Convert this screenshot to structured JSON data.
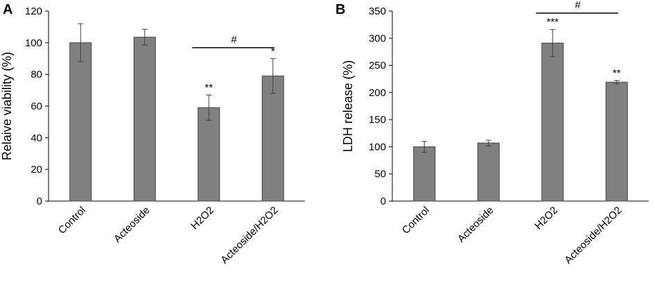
{
  "chart_data": [
    {
      "type": "bar",
      "panel_label": "A",
      "title": "",
      "xlabel": "",
      "ylabel": "Relaive viability (%)",
      "ylim": [
        0,
        120
      ],
      "yticks": [
        "0",
        "20",
        "40",
        "60",
        "80",
        "100",
        "120"
      ],
      "categories": [
        "Control",
        "Acteoside",
        "H2O2",
        "Acteoside/H2O2"
      ],
      "values": [
        100,
        103.5,
        59,
        79
      ],
      "errors": [
        12,
        5,
        8,
        11
      ],
      "bar_color": "#808080",
      "significance": [
        "",
        "",
        "**",
        "*"
      ],
      "bracket": {
        "from": 2,
        "to": 3,
        "label": "#"
      },
      "grid": false,
      "legend": "none"
    },
    {
      "type": "bar",
      "panel_label": "B",
      "title": "",
      "xlabel": "",
      "ylabel": "LDH release (%)",
      "ylim": [
        0,
        350
      ],
      "yticks": [
        "0",
        "50",
        "100",
        "150",
        "200",
        "250",
        "300",
        "350"
      ],
      "categories": [
        "Control",
        "Acteoside",
        "H2O2",
        "Acteoside/H2O2"
      ],
      "values": [
        100,
        107,
        291,
        219
      ],
      "errors": [
        10,
        5,
        25,
        3
      ],
      "bar_color": "#808080",
      "significance": [
        "",
        "",
        "***",
        "**"
      ],
      "bracket": {
        "from": 2,
        "to": 3,
        "label": "#"
      },
      "grid": false,
      "legend": "none"
    }
  ]
}
